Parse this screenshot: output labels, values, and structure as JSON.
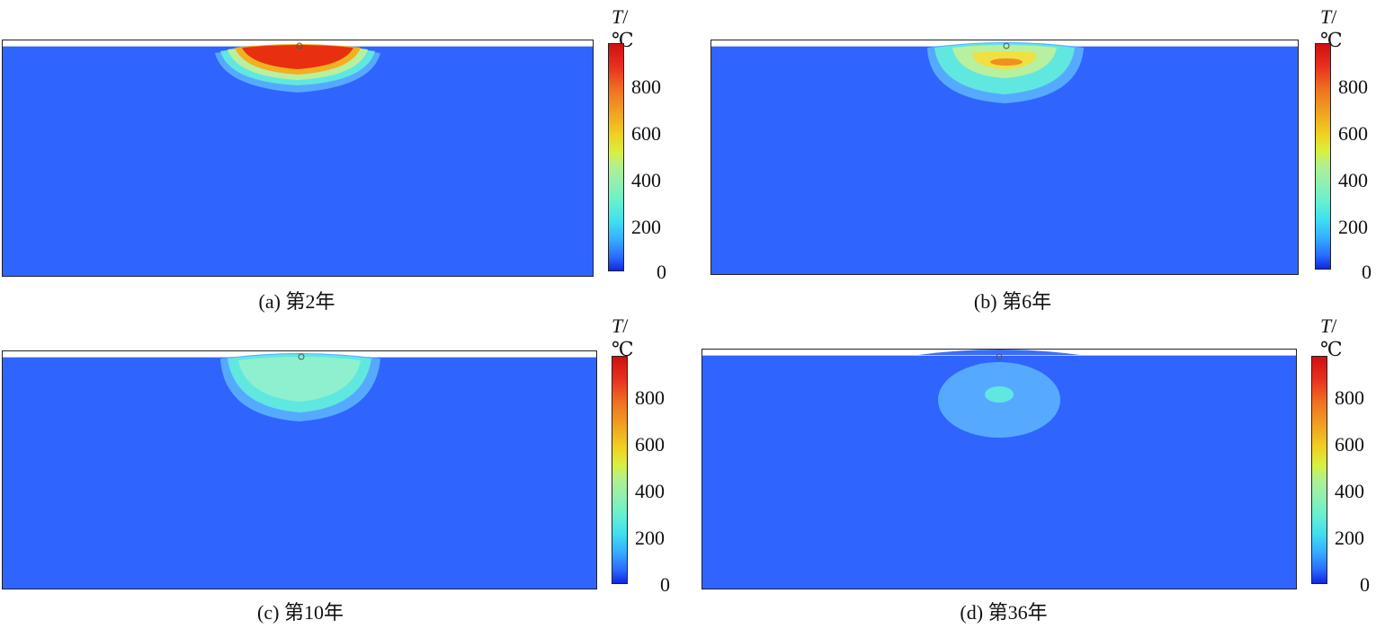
{
  "colorbar": {
    "symbol": "T",
    "unit": "/℃",
    "ticks": [
      "800",
      "600",
      "400",
      "200",
      "0"
    ]
  },
  "panels": [
    {
      "caption": "(a) 第2年"
    },
    {
      "caption": "(b) 第6年"
    },
    {
      "caption": "(c) 第10年"
    },
    {
      "caption": "(d) 第36年"
    }
  ]
}
